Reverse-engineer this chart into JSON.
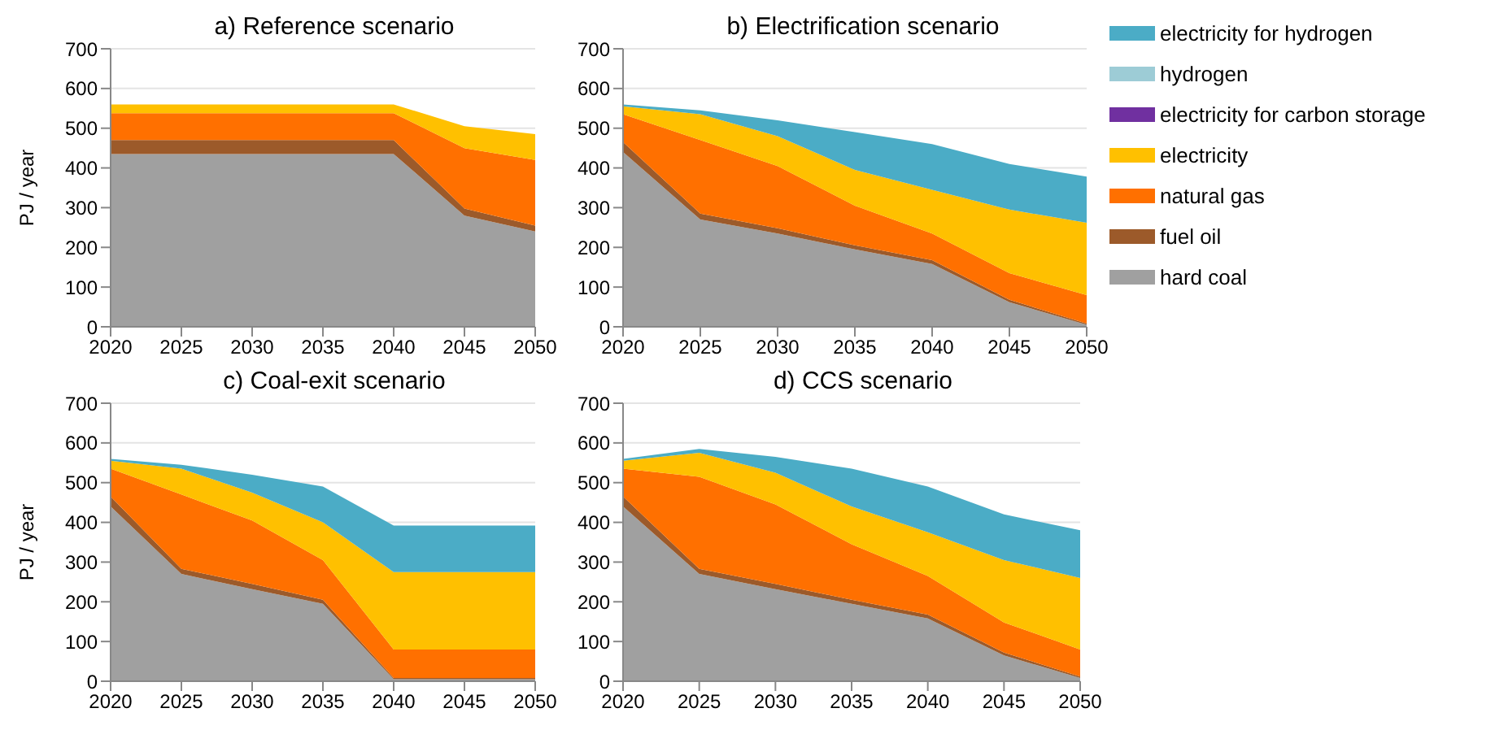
{
  "chart_data": [
    {
      "type": "area",
      "stacked": true,
      "title": "a) Reference scenario",
      "ylabel": "PJ / year",
      "x": [
        2020,
        2025,
        2030,
        2035,
        2040,
        2045,
        2050
      ],
      "xlim": [
        2020,
        2050
      ],
      "xticks": [
        2020,
        2025,
        2030,
        2035,
        2040,
        2045,
        2050
      ],
      "ylim": [
        0,
        700
      ],
      "yticks": [
        0,
        100,
        200,
        300,
        400,
        500,
        600,
        700
      ],
      "grid": "y",
      "legend": false,
      "series": [
        {
          "color": "#a0a0a0",
          "values": [
            435,
            435,
            435,
            435,
            435,
            280,
            240
          ]
        },
        {
          "color": "#9c5a2a",
          "values": [
            35,
            35,
            35,
            35,
            35,
            18,
            15
          ]
        },
        {
          "color": "#ff7000",
          "values": [
            68,
            68,
            68,
            68,
            68,
            152,
            165
          ]
        },
        {
          "color": "#ffc000",
          "values": [
            22,
            22,
            22,
            22,
            22,
            55,
            65
          ]
        }
      ]
    },
    {
      "type": "area",
      "stacked": true,
      "title": "b) Electrification scenario",
      "x": [
        2020,
        2025,
        2030,
        2035,
        2040,
        2045,
        2050
      ],
      "xlim": [
        2020,
        2050
      ],
      "xticks": [
        2020,
        2025,
        2030,
        2035,
        2040,
        2045,
        2050
      ],
      "ylim": [
        0,
        700
      ],
      "yticks": [
        0,
        100,
        200,
        300,
        400,
        500,
        600,
        700
      ],
      "grid": "y",
      "legend": "right",
      "series": [
        {
          "name": "hard coal",
          "color": "#a0a0a0",
          "values": [
            440,
            270,
            235,
            195,
            158,
            62,
            5
          ]
        },
        {
          "name": "fuel oil",
          "color": "#9c5a2a",
          "values": [
            25,
            15,
            13,
            10,
            10,
            6,
            3
          ]
        },
        {
          "name": "natural gas",
          "color": "#ff7000",
          "values": [
            70,
            185,
            157,
            100,
            67,
            67,
            72
          ]
        },
        {
          "name": "electricity",
          "color": "#ffc000",
          "values": [
            20,
            65,
            75,
            90,
            110,
            160,
            182
          ]
        },
        {
          "name": "electricity for carbon storage",
          "color": "#7030a0",
          "values": [
            null,
            null,
            null,
            null,
            null,
            null,
            null
          ]
        },
        {
          "name": "hydrogen",
          "color": "#9dccd6",
          "values": [
            null,
            null,
            null,
            null,
            null,
            null,
            null
          ]
        },
        {
          "name": "electricity for hydrogen",
          "color": "#4bacc6",
          "values": [
            5,
            10,
            40,
            95,
            115,
            115,
            116
          ]
        }
      ]
    },
    {
      "type": "area",
      "stacked": true,
      "title": "c) Coal-exit scenario",
      "ylabel": "PJ / year",
      "x": [
        2020,
        2025,
        2030,
        2035,
        2040,
        2045,
        2050
      ],
      "xlim": [
        2020,
        2050
      ],
      "xticks": [
        2020,
        2025,
        2030,
        2035,
        2040,
        2045,
        2050
      ],
      "ylim": [
        0,
        700
      ],
      "yticks": [
        0,
        100,
        200,
        300,
        400,
        500,
        600,
        700
      ],
      "grid": "y",
      "legend": false,
      "series": [
        {
          "color": "#a0a0a0",
          "values": [
            440,
            270,
            232,
            195,
            5,
            5,
            5
          ]
        },
        {
          "color": "#9c5a2a",
          "values": [
            25,
            13,
            13,
            10,
            3,
            3,
            3
          ]
        },
        {
          "color": "#ff7000",
          "values": [
            70,
            187,
            160,
            100,
            72,
            72,
            72
          ]
        },
        {
          "color": "#ffc000",
          "values": [
            20,
            65,
            70,
            95,
            195,
            195,
            195
          ]
        },
        {
          "color": "#4bacc6",
          "values": [
            5,
            10,
            45,
            90,
            117,
            117,
            117
          ]
        }
      ]
    },
    {
      "type": "area",
      "stacked": true,
      "title": "d) CCS scenario",
      "x": [
        2020,
        2025,
        2030,
        2035,
        2040,
        2045,
        2050
      ],
      "xlim": [
        2020,
        2050
      ],
      "xticks": [
        2020,
        2025,
        2030,
        2035,
        2040,
        2045,
        2050
      ],
      "ylim": [
        0,
        700
      ],
      "yticks": [
        0,
        100,
        200,
        300,
        400,
        500,
        600,
        700
      ],
      "grid": "y",
      "legend": false,
      "series": [
        {
          "color": "#a0a0a0",
          "values": [
            440,
            270,
            232,
            195,
            158,
            65,
            8
          ]
        },
        {
          "color": "#9c5a2a",
          "values": [
            25,
            13,
            13,
            10,
            10,
            7,
            4
          ]
        },
        {
          "color": "#ff7000",
          "values": [
            70,
            232,
            200,
            140,
            97,
            76,
            68
          ]
        },
        {
          "color": "#ffc000",
          "values": [
            20,
            60,
            80,
            95,
            110,
            157,
            180
          ]
        },
        {
          "color": "#4bacc6",
          "values": [
            5,
            10,
            40,
            95,
            115,
            115,
            120
          ]
        }
      ]
    }
  ]
}
